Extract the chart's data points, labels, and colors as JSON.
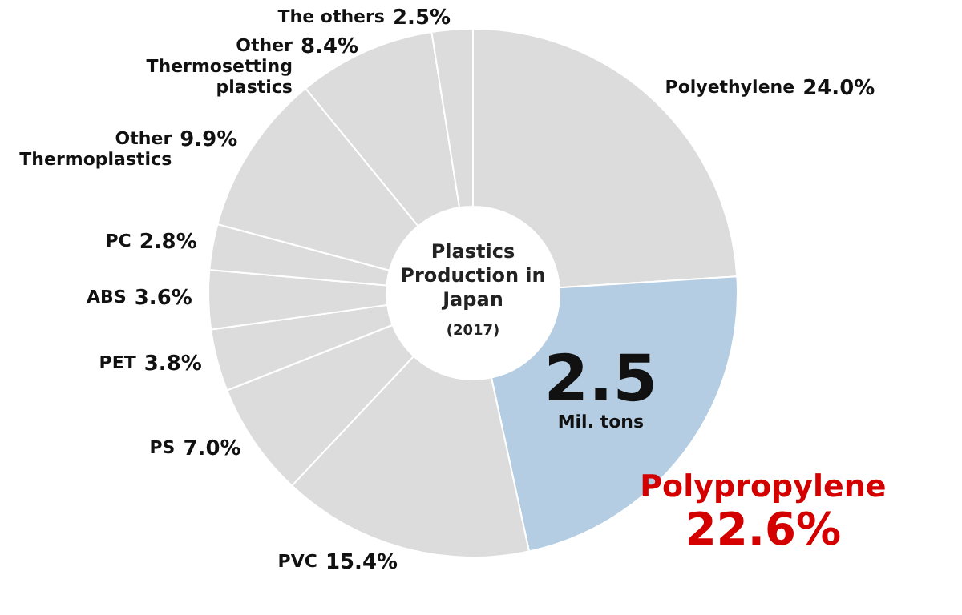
{
  "chart_data": {
    "type": "donut",
    "title": "Plastics Production in Japan",
    "subtitle": "(2017)",
    "categories": [
      "Polyethylene",
      "Polypropylene",
      "PVC",
      "PS",
      "PET",
      "ABS",
      "PC",
      "Other Thermoplastics",
      "Other Thermosetting plastics",
      "The others"
    ],
    "values": [
      24.0,
      22.6,
      15.4,
      7.0,
      3.8,
      3.6,
      2.8,
      9.9,
      8.4,
      2.5
    ],
    "value_labels": [
      "24.0%",
      "22.6%",
      "15.4%",
      "7.0%",
      "3.8%",
      "3.6%",
      "2.8%",
      "9.9%",
      "8.4%",
      "2.5%"
    ],
    "colors": [
      "#dcdcdc",
      "#b4cde3",
      "#dcdcdc",
      "#dcdcdc",
      "#dcdcdc",
      "#dcdcdc",
      "#dcdcdc",
      "#dcdcdc",
      "#dcdcdc",
      "#dcdcdc"
    ],
    "annotations": [
      "2.5",
      "Mil. tons"
    ],
    "legend": false
  }
}
